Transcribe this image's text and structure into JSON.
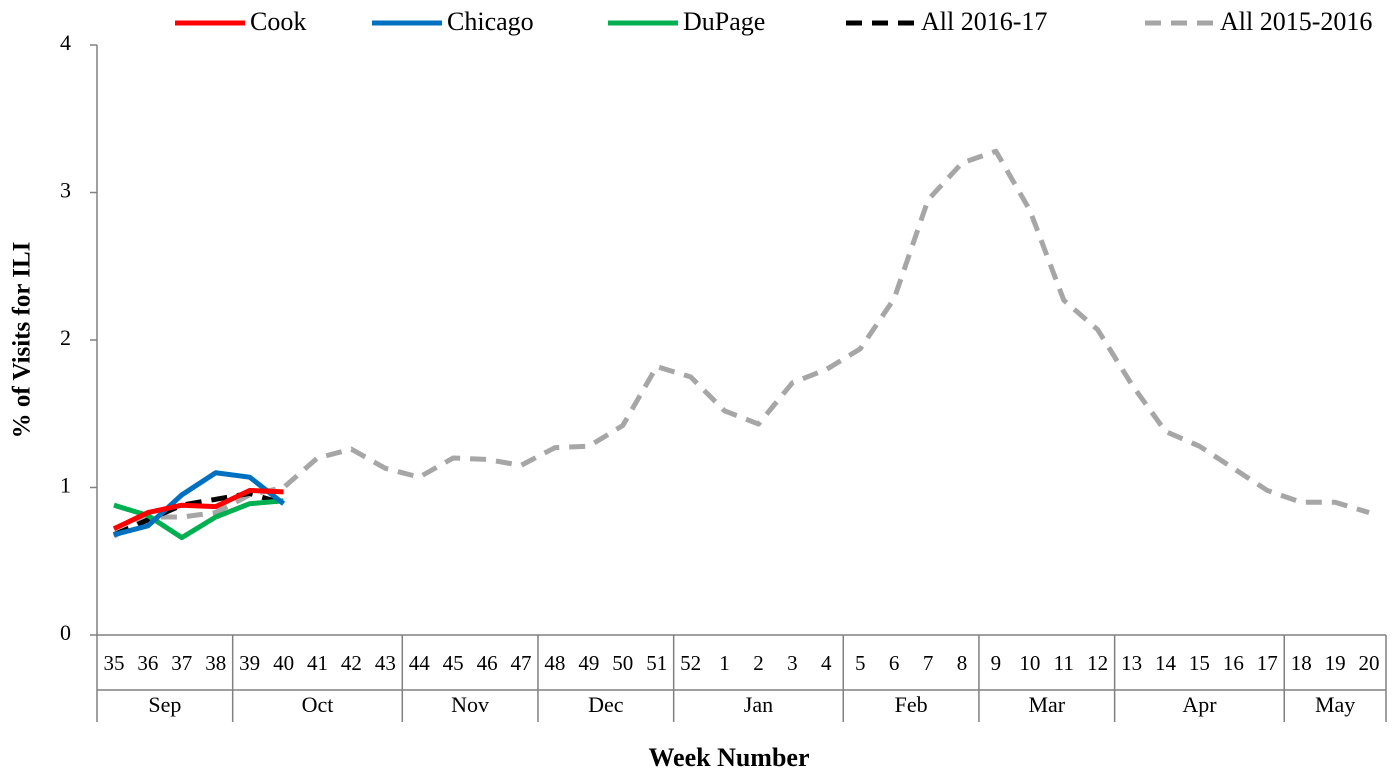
{
  "chart_data": {
    "type": "line",
    "x_label": "Week Number",
    "y_label": "% of Visits for ILI",
    "categories": [
      "35",
      "36",
      "37",
      "38",
      "39",
      "40",
      "41",
      "42",
      "43",
      "44",
      "45",
      "46",
      "47",
      "48",
      "49",
      "50",
      "51",
      "52",
      "1",
      "2",
      "3",
      "4",
      "5",
      "6",
      "7",
      "8",
      "9",
      "10",
      "11",
      "12",
      "13",
      "14",
      "15",
      "16",
      "17",
      "18",
      "19",
      "20"
    ],
    "x_groups": [
      "Sep",
      null,
      null,
      null,
      "Oct",
      null,
      null,
      null,
      null,
      "Nov",
      null,
      null,
      null,
      "Dec",
      null,
      null,
      null,
      "Jan",
      null,
      null,
      null,
      null,
      "Feb",
      null,
      null,
      null,
      "Mar",
      null,
      null,
      null,
      "Apr",
      null,
      null,
      null,
      null,
      "May",
      null,
      null
    ],
    "ylim": [
      0,
      4
    ],
    "yticks": [
      0,
      1,
      2,
      3,
      4
    ],
    "grid": false,
    "series": [
      {
        "name": "Cook",
        "color": "#ff0000",
        "dashed": false,
        "values": [
          0.72,
          0.83,
          0.88,
          0.87,
          0.98,
          0.97,
          null,
          null,
          null,
          null,
          null,
          null,
          null,
          null,
          null,
          null,
          null,
          null,
          null,
          null,
          null,
          null,
          null,
          null,
          null,
          null,
          null,
          null,
          null,
          null,
          null,
          null,
          null,
          null,
          null,
          null,
          null,
          null
        ]
      },
      {
        "name": "Chicago",
        "color": "#0070c0",
        "dashed": false,
        "values": [
          0.68,
          0.74,
          0.95,
          1.1,
          1.07,
          0.89,
          null,
          null,
          null,
          null,
          null,
          null,
          null,
          null,
          null,
          null,
          null,
          null,
          null,
          null,
          null,
          null,
          null,
          null,
          null,
          null,
          null,
          null,
          null,
          null,
          null,
          null,
          null,
          null,
          null,
          null,
          null,
          null
        ]
      },
      {
        "name": "DuPage",
        "color": "#00b050",
        "dashed": false,
        "values": [
          0.88,
          0.81,
          0.66,
          0.8,
          0.89,
          0.91,
          null,
          null,
          null,
          null,
          null,
          null,
          null,
          null,
          null,
          null,
          null,
          null,
          null,
          null,
          null,
          null,
          null,
          null,
          null,
          null,
          null,
          null,
          null,
          null,
          null,
          null,
          null,
          null,
          null,
          null,
          null,
          null
        ]
      },
      {
        "name": "All 2016-17",
        "color": "#000000",
        "dashed": true,
        "values": [
          0.68,
          0.78,
          0.88,
          0.92,
          0.96,
          0.89,
          null,
          null,
          null,
          null,
          null,
          null,
          null,
          null,
          null,
          null,
          null,
          null,
          null,
          null,
          null,
          null,
          null,
          null,
          null,
          null,
          null,
          null,
          null,
          null,
          null,
          null,
          null,
          null,
          null,
          null,
          null,
          null
        ]
      },
      {
        "name": "All 2015-2016",
        "color": "#a6a6a6",
        "dashed": true,
        "values": [
          0.67,
          0.8,
          0.8,
          0.83,
          0.95,
          1.0,
          1.2,
          1.26,
          1.13,
          1.07,
          1.2,
          1.19,
          1.15,
          1.27,
          1.28,
          1.42,
          1.82,
          1.75,
          1.52,
          1.43,
          1.71,
          1.8,
          1.94,
          2.28,
          2.95,
          3.2,
          3.28,
          2.88,
          2.27,
          2.07,
          1.7,
          1.38,
          1.28,
          1.13,
          0.98,
          0.9,
          0.9,
          0.83
        ]
      }
    ]
  }
}
